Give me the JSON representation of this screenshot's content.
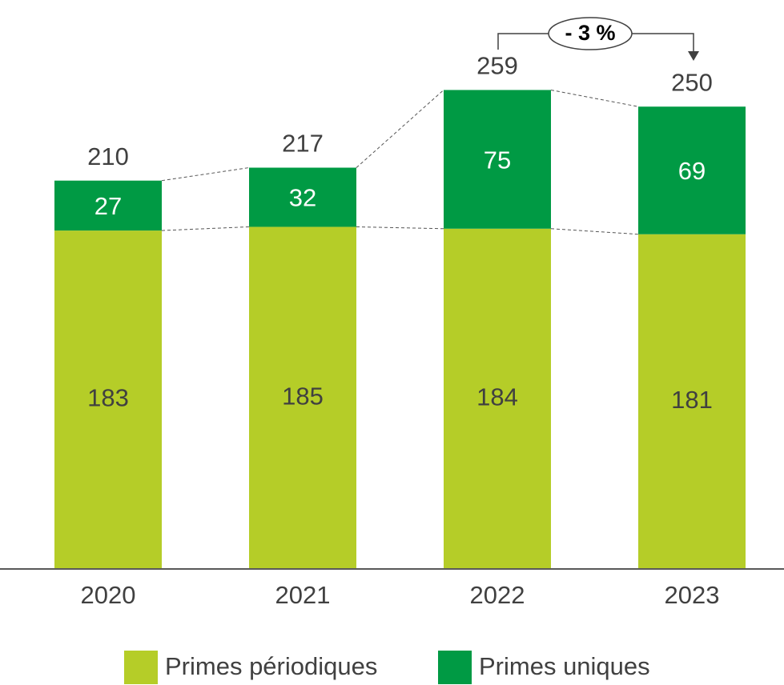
{
  "chart_data": {
    "type": "stacked_bar",
    "categories": [
      "2020",
      "2021",
      "2022",
      "2023"
    ],
    "series": [
      {
        "name": "Primes périodiques",
        "color": "#b5cd28",
        "values": [
          183,
          185,
          184,
          181
        ]
      },
      {
        "name": "Primes uniques",
        "color": "#009a44",
        "values": [
          27,
          32,
          75,
          69
        ]
      }
    ],
    "totals": [
      210,
      217,
      259,
      250
    ],
    "annotation": "- 3 %"
  }
}
